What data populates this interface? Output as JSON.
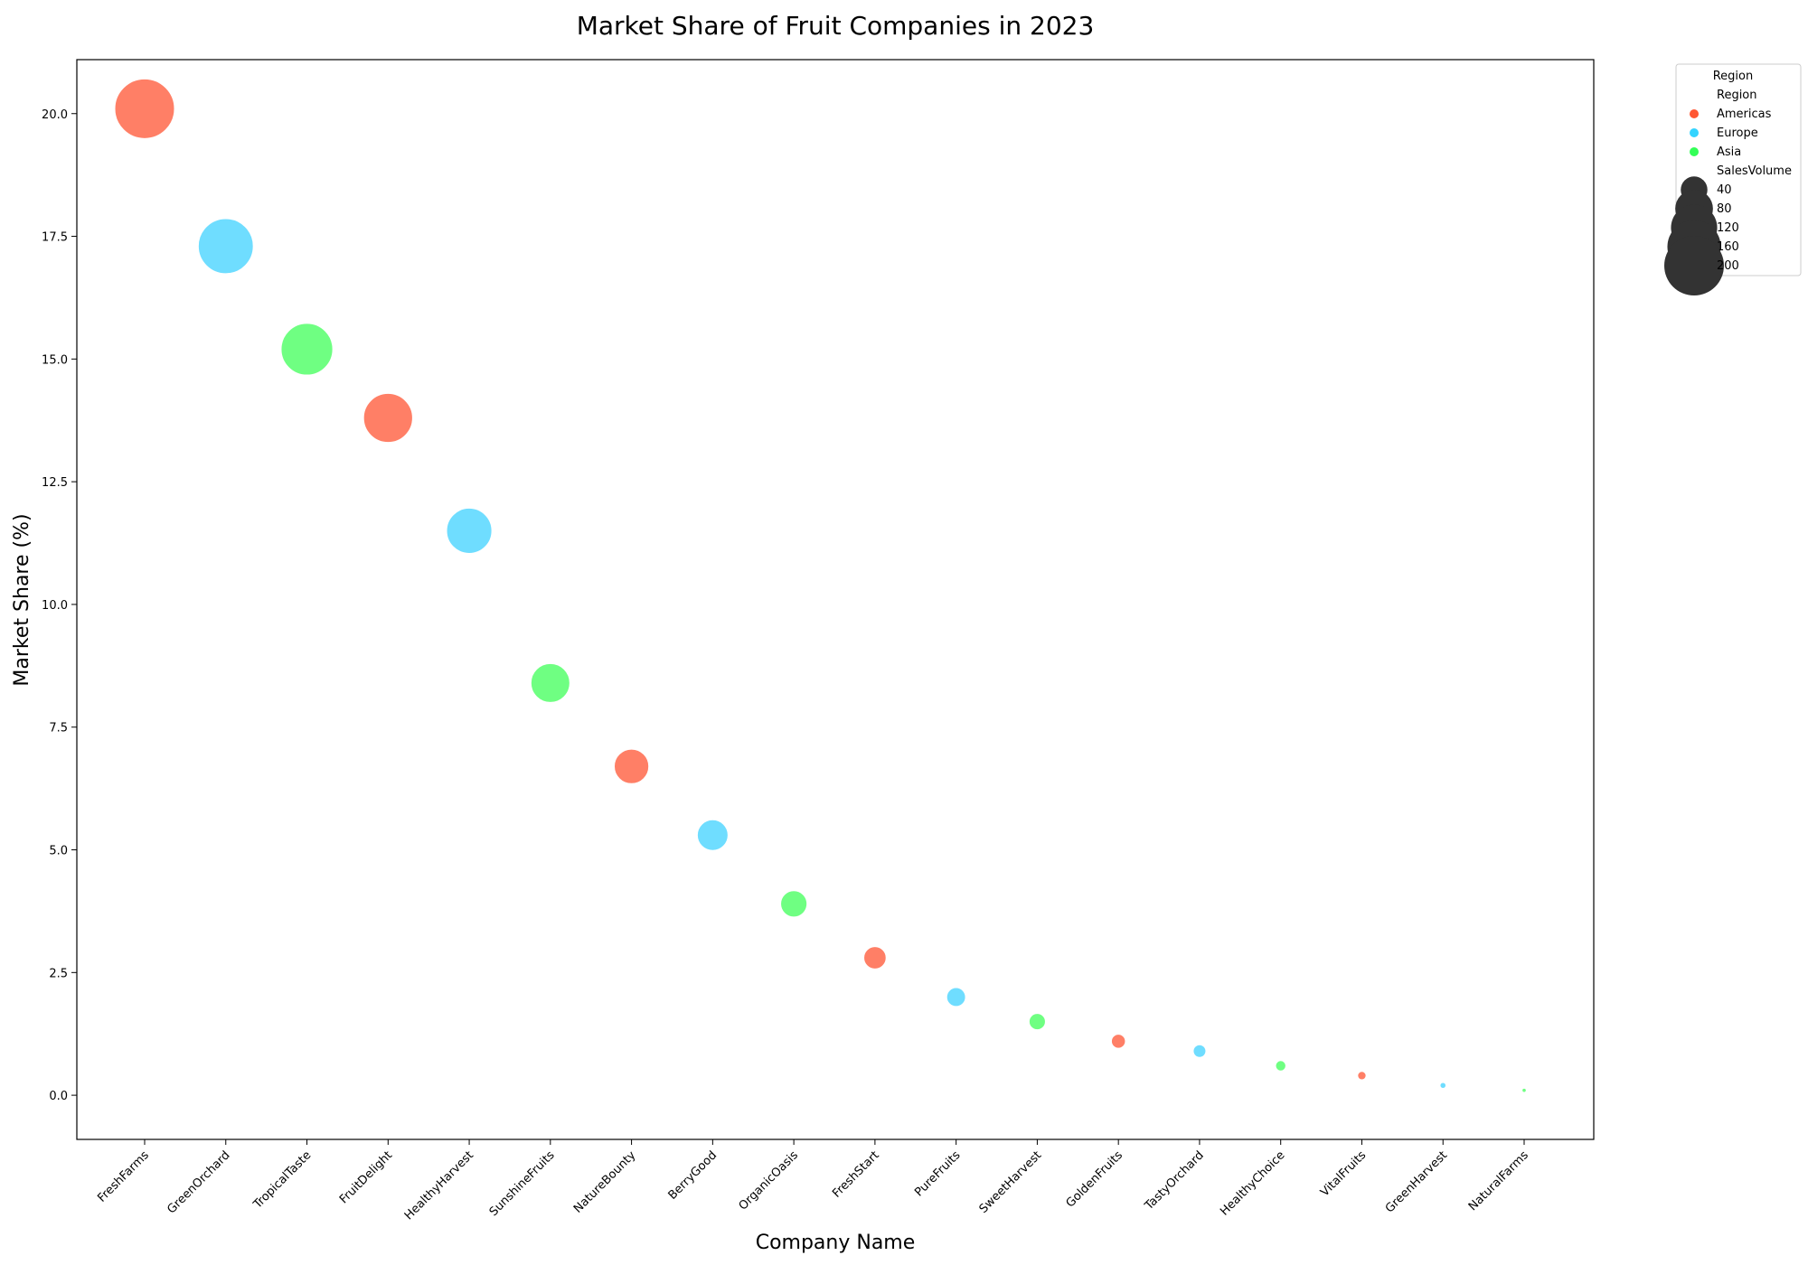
{
  "chart_data": {
    "type": "scatter",
    "title": "Market Share of Fruit Companies in 2023",
    "xlabel": "Company Name",
    "ylabel": "Market Share (%)",
    "ylim": [
      -0.9,
      21.1
    ],
    "yticks": [
      0.0,
      2.5,
      5.0,
      7.5,
      10.0,
      12.5,
      15.0,
      17.5,
      20.0
    ],
    "ytick_labels": [
      "0.0",
      "2.5",
      "5.0",
      "7.5",
      "10.0",
      "12.5",
      "15.0",
      "17.5",
      "20.0"
    ],
    "categories": [
      "FreshFarms",
      "GreenOrchard",
      "TropicalTaste",
      "FruitDelight",
      "HealthyHarvest",
      "SunshineFruits",
      "NatureBounty",
      "BerryGood",
      "OrganicOasis",
      "FreshStart",
      "PureFruits",
      "SweetHarvest",
      "GoldenFruits",
      "TastyOrchard",
      "HealthyChoice",
      "VitalFruits",
      "GreenHarvest",
      "NaturalFarms"
    ],
    "x_tick_rotation": 45,
    "grid": false,
    "points": [
      {
        "company": "FreshFarms",
        "market_share": 20.1,
        "sales_volume": 200,
        "region": "Americas"
      },
      {
        "company": "GreenOrchard",
        "market_share": 17.3,
        "sales_volume": 170,
        "region": "Europe"
      },
      {
        "company": "TropicalTaste",
        "market_share": 15.2,
        "sales_volume": 150,
        "region": "Asia"
      },
      {
        "company": "FruitDelight",
        "market_share": 13.8,
        "sales_volume": 135,
        "region": "Americas"
      },
      {
        "company": "HealthyHarvest",
        "market_share": 11.5,
        "sales_volume": 115,
        "region": "Europe"
      },
      {
        "company": "SunshineFruits",
        "market_share": 8.4,
        "sales_volume": 85,
        "region": "Asia"
      },
      {
        "company": "NatureBounty",
        "market_share": 6.7,
        "sales_volume": 67,
        "region": "Americas"
      },
      {
        "company": "BerryGood",
        "market_share": 5.3,
        "sales_volume": 53,
        "region": "Europe"
      },
      {
        "company": "OrganicOasis",
        "market_share": 3.9,
        "sales_volume": 39,
        "region": "Asia"
      },
      {
        "company": "FreshStart",
        "market_share": 2.8,
        "sales_volume": 28,
        "region": "Americas"
      },
      {
        "company": "PureFruits",
        "market_share": 2.0,
        "sales_volume": 20,
        "region": "Europe"
      },
      {
        "company": "SweetHarvest",
        "market_share": 1.5,
        "sales_volume": 15,
        "region": "Asia"
      },
      {
        "company": "GoldenFruits",
        "market_share": 1.1,
        "sales_volume": 11,
        "region": "Americas"
      },
      {
        "company": "TastyOrchard",
        "market_share": 0.9,
        "sales_volume": 9,
        "region": "Europe"
      },
      {
        "company": "HealthyChoice",
        "market_share": 0.6,
        "sales_volume": 6,
        "region": "Asia"
      },
      {
        "company": "VitalFruits",
        "market_share": 0.4,
        "sales_volume": 4,
        "region": "Americas"
      },
      {
        "company": "GreenHarvest",
        "market_share": 0.2,
        "sales_volume": 2,
        "region": "Europe"
      },
      {
        "company": "NaturalFarms",
        "market_share": 0.1,
        "sales_volume": 1,
        "region": "Asia"
      }
    ],
    "regions": [
      {
        "name": "Americas",
        "color": "#FF7F66",
        "legend_color": "#FF5733"
      },
      {
        "name": "Europe",
        "color": "#6FDDFF",
        "legend_color": "#33D4FF"
      },
      {
        "name": "Asia",
        "color": "#6FFF82",
        "legend_color": "#33FF57"
      }
    ],
    "legend": {
      "placement": "outside-top-right",
      "title": "Region",
      "hue_heading": "Region",
      "size_heading": "SalesVolume",
      "size_values": [
        40,
        80,
        120,
        160,
        200
      ],
      "size_labels": [
        "40",
        "80",
        "120",
        "160",
        "200"
      ],
      "size_marker_color": "#333333"
    }
  }
}
